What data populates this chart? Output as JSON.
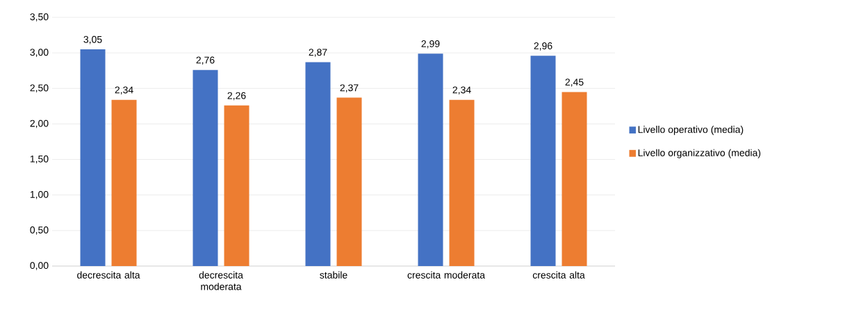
{
  "chart_data": {
    "type": "bar",
    "categories": [
      "decrescita alta",
      "decrescita moderata",
      "stabile",
      "crescita moderata",
      "crescita alta"
    ],
    "series": [
      {
        "name": "Livello operativo (media)",
        "color": "#4472c4",
        "values": [
          3.05,
          2.76,
          2.87,
          2.99,
          2.96
        ],
        "value_labels": [
          "3,05",
          "2,76",
          "2,87",
          "2,99",
          "2,96"
        ]
      },
      {
        "name": "Livello organizzativo (media)",
        "color": "#ed7d31",
        "values": [
          2.34,
          2.26,
          2.37,
          2.34,
          2.45
        ],
        "value_labels": [
          "2,34",
          "2,26",
          "2,37",
          "2,34",
          "2,45"
        ]
      }
    ],
    "ylim": [
      0,
      3.5
    ],
    "yticks": [
      {
        "value": 0,
        "label": "0,00"
      },
      {
        "value": 0.5,
        "label": "0,50"
      },
      {
        "value": 1,
        "label": "1,00"
      },
      {
        "value": 1.5,
        "label": "1,50"
      },
      {
        "value": 2,
        "label": "2,00"
      },
      {
        "value": 2.5,
        "label": "2,50"
      },
      {
        "value": 3,
        "label": "3,00"
      },
      {
        "value": 3.5,
        "label": "3,50"
      }
    ],
    "grid": "y",
    "legend": "right"
  }
}
